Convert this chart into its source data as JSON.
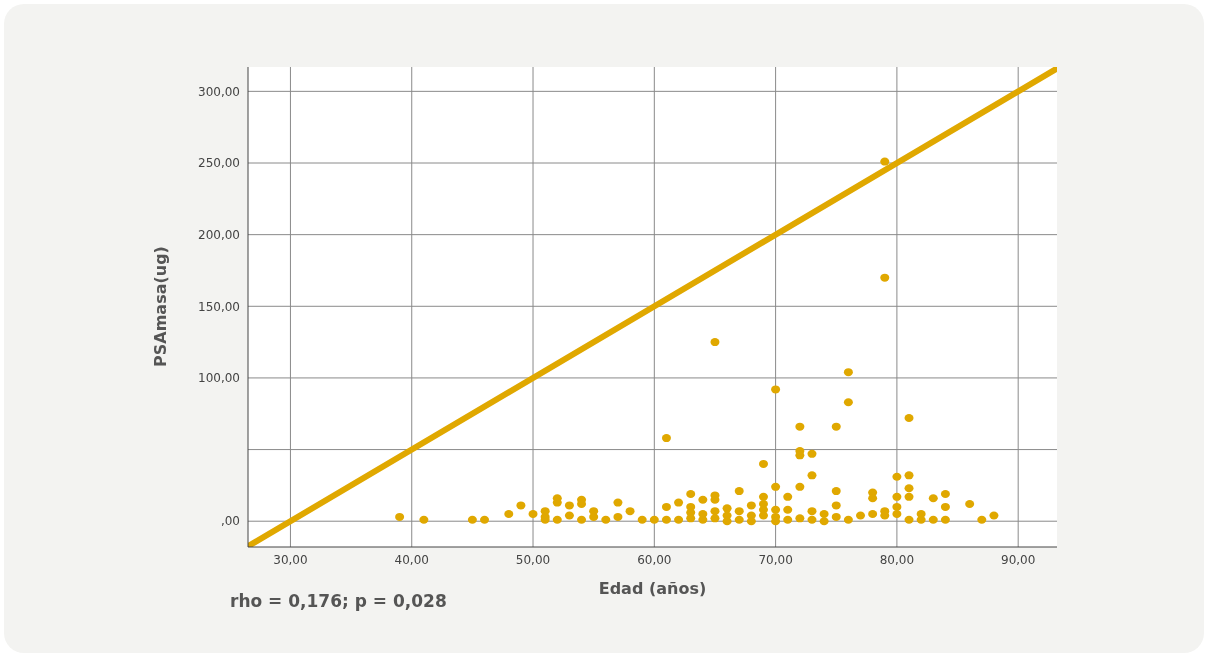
{
  "chart_data": {
    "type": "scatter",
    "xlabel": "Edad (años)",
    "ylabel": "PSAmasa(ug)",
    "annotations": [
      "rho = 0,176; p = 0,028"
    ],
    "xlim": [
      26.5,
      93.2
    ],
    "ylim": [
      -18,
      317
    ],
    "xticks": [
      {
        "value": 30,
        "label": "30,00"
      },
      {
        "value": 40,
        "label": "40,00"
      },
      {
        "value": 50,
        "label": "50,00"
      },
      {
        "value": 60,
        "label": "60,00"
      },
      {
        "value": 70,
        "label": "70,00"
      },
      {
        "value": 80,
        "label": "80,00"
      },
      {
        "value": 90,
        "label": "90,00"
      }
    ],
    "yticks": [
      {
        "value": 0,
        "label": ",00"
      },
      {
        "value": 50,
        "label": null
      },
      {
        "value": 100,
        "label": "100,00"
      },
      {
        "value": 150,
        "label": "150,00"
      },
      {
        "value": 200,
        "label": "200,00"
      },
      {
        "value": 250,
        "label": "250,00"
      },
      {
        "value": 300,
        "label": "300,00"
      }
    ],
    "grid": true,
    "series": [
      {
        "marker": "circle",
        "color": "#e0a800",
        "x": [
          39,
          41,
          45,
          46,
          48,
          49,
          50,
          51,
          51,
          51,
          52,
          52,
          52,
          53,
          53,
          54,
          54,
          54,
          55,
          55,
          56,
          57,
          57,
          58,
          59,
          60,
          61,
          61,
          61,
          62,
          62,
          63,
          63,
          63,
          63,
          64,
          64,
          64,
          65,
          65,
          65,
          65,
          65,
          66,
          66,
          66,
          67,
          67,
          67,
          68,
          68,
          68,
          69,
          69,
          69,
          69,
          69,
          70,
          70,
          70,
          70,
          70,
          71,
          71,
          71,
          72,
          72,
          72,
          72,
          72,
          73,
          73,
          73,
          73,
          74,
          74,
          75,
          75,
          75,
          75,
          76,
          76,
          76,
          77,
          78,
          78,
          78,
          79,
          79,
          79,
          79,
          80,
          80,
          80,
          80,
          81,
          81,
          81,
          81,
          81,
          82,
          82,
          83,
          83,
          84,
          84,
          84,
          86,
          87,
          88
        ],
        "values": [
          3,
          1,
          1,
          1,
          5,
          11,
          5,
          3,
          7,
          1,
          16,
          13,
          1,
          11,
          4,
          15,
          12,
          1,
          7,
          3,
          1,
          13,
          3,
          7,
          1,
          1,
          58,
          10,
          1,
          13,
          1,
          19,
          10,
          6,
          2,
          15,
          5,
          1,
          125,
          18,
          15,
          7,
          2,
          9,
          4,
          0,
          21,
          7,
          1,
          11,
          4,
          0,
          40,
          17,
          12,
          8,
          4,
          92,
          24,
          8,
          3,
          0,
          17,
          8,
          1,
          66,
          49,
          46,
          24,
          2,
          47,
          32,
          7,
          1,
          5,
          0,
          66,
          21,
          11,
          3,
          104,
          83,
          1,
          4,
          20,
          16,
          5,
          251,
          170,
          7,
          4,
          31,
          17,
          10,
          5,
          72,
          32,
          23,
          17,
          1,
          5,
          1,
          16,
          1,
          19,
          10,
          1,
          12,
          1,
          4
        ]
      },
      {
        "type": "line",
        "color": "#e0a800",
        "line_style": "solid",
        "x": [
          26.5,
          93.2
        ],
        "values": [
          -17.5,
          316
        ]
      }
    ]
  }
}
